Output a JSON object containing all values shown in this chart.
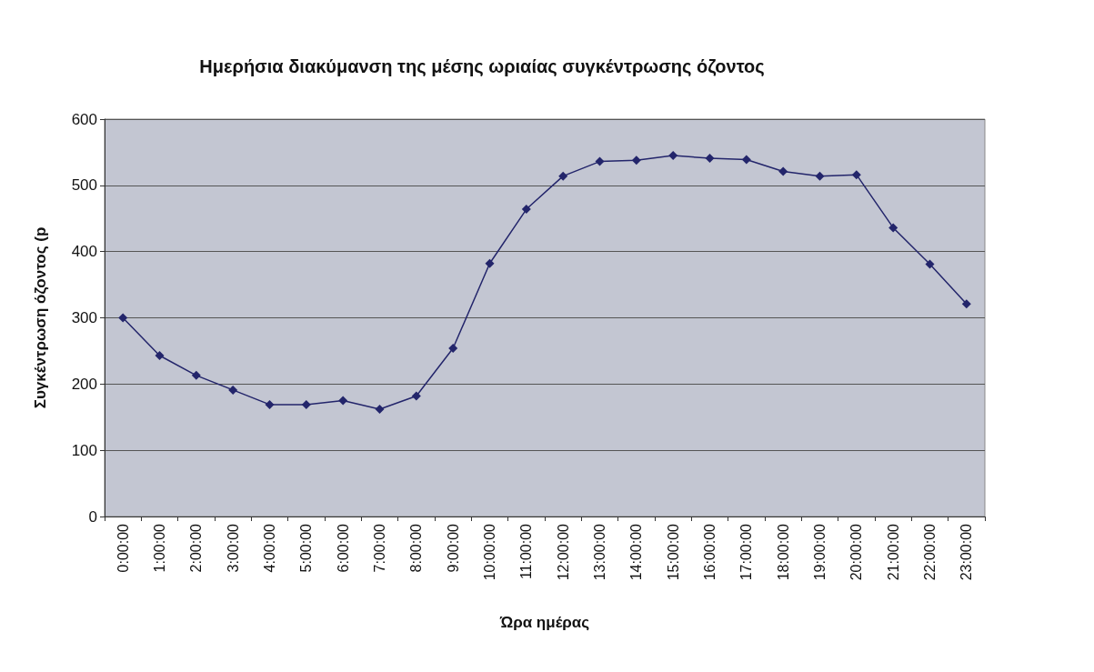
{
  "chart_data": {
    "type": "line",
    "title": "Ημερήσια διακύμανση της μέσης ωριαίας συγκέντρωσης όζοντος",
    "xlabel": "Ώρα ημέρας",
    "ylabel": "Συγκέντρωση όζοντος (p",
    "categories": [
      "0:00:00",
      "1:00:00",
      "2:00:00",
      "3:00:00",
      "4:00:00",
      "5:00:00",
      "6:00:00",
      "7:00:00",
      "8:00:00",
      "9:00:00",
      "10:00:00",
      "11:00:00",
      "12:00:00",
      "13:00:00",
      "14:00:00",
      "15:00:00",
      "16:00:00",
      "17:00:00",
      "18:00:00",
      "19:00:00",
      "20:00:00",
      "21:00:00",
      "22:00:00",
      "23:00:00"
    ],
    "values": [
      300,
      243,
      213,
      191,
      169,
      169,
      175,
      162,
      182,
      254,
      382,
      464,
      514,
      536,
      538,
      545,
      541,
      539,
      521,
      514,
      516,
      436,
      381,
      321
    ],
    "color": "#23256b",
    "marker": "diamond",
    "line_style": "solid",
    "ylim": [
      0,
      600
    ],
    "yticks": [
      0,
      100,
      200,
      300,
      400,
      500,
      600
    ],
    "grid": "y"
  }
}
